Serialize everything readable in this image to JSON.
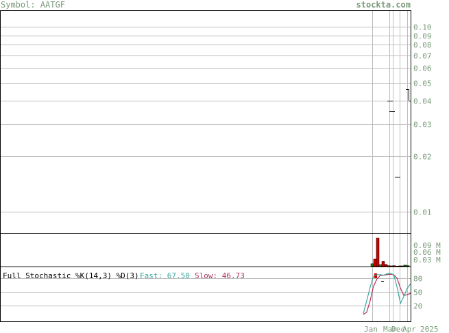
{
  "header": {
    "symbol_text": "Symbol: AATGF",
    "site_text": "stockta.com"
  },
  "colors": {
    "label_text": "#7a9a7a",
    "grid": "#bdbdbd",
    "up_volume": "#1f7a1f",
    "down_volume": "#cc0000",
    "fast_line": "#3aa8a0",
    "slow_line": "#b0305a"
  },
  "stochastic_panel": {
    "title": "Full Stochastic %K(14,3) %D(3)",
    "fast_label": "Fast: 67.50",
    "slow_label": "Slow: 46.73"
  },
  "x_axis": {
    "labels": [
      "Jan",
      "Mar",
      "Dec",
      "Apr",
      "2025"
    ]
  },
  "chart_data": {
    "type": "ohlc",
    "scale": "log",
    "price_axis": {
      "range": [
        0.0077,
        0.122
      ],
      "ticks": [
        "0.10",
        "0.09",
        "0.08",
        "0.07",
        "0.06",
        "0.05",
        "0.04",
        "0.03",
        "0.02",
        "0.01"
      ]
    },
    "price_bars": [
      {
        "high": 0.04,
        "low": 0.04,
        "open": 0.04,
        "close": 0.04
      },
      {
        "high": 0.035,
        "low": 0.035,
        "open": 0.035,
        "close": 0.035
      },
      {
        "high": 0.0155,
        "low": 0.0155,
        "open": 0.0155,
        "close": 0.0155
      },
      {
        "high": 0.046,
        "low": 0.04,
        "open": 0.046,
        "close": 0.04
      }
    ],
    "volume_axis": {
      "range": [
        0,
        0.14
      ],
      "ticks": [
        "0.09 M",
        "0.06 M",
        "0.03 M"
      ]
    },
    "volume_bars": [
      {
        "value": 0.012,
        "direction": "up"
      },
      {
        "value": 0.032,
        "direction": "down"
      },
      {
        "value": 0.122,
        "direction": "down"
      },
      {
        "value": 0.008,
        "direction": "up"
      },
      {
        "value": 0.022,
        "direction": "down"
      },
      {
        "value": 0.009,
        "direction": "down"
      },
      {
        "value": 0.004,
        "direction": "up"
      },
      {
        "value": 0.003,
        "direction": "down"
      },
      {
        "value": 0.004,
        "direction": "down"
      },
      {
        "value": 0.002,
        "direction": "up"
      },
      {
        "value": 0.003,
        "direction": "down"
      },
      {
        "value": 0.003,
        "direction": "up"
      },
      {
        "value": 0.006,
        "direction": "up"
      },
      {
        "value": 0.004,
        "direction": "up"
      }
    ],
    "stochastic": {
      "ticks": [
        "80",
        "50",
        "20"
      ],
      "fast": [
        2,
        30,
        60,
        85,
        88,
        88,
        87,
        90,
        91,
        88,
        60,
        25,
        40,
        58,
        67.5
      ],
      "slow": [
        0,
        5,
        30,
        62,
        78,
        86,
        87,
        88,
        89,
        88,
        80,
        58,
        42,
        44,
        46.73
      ]
    }
  }
}
